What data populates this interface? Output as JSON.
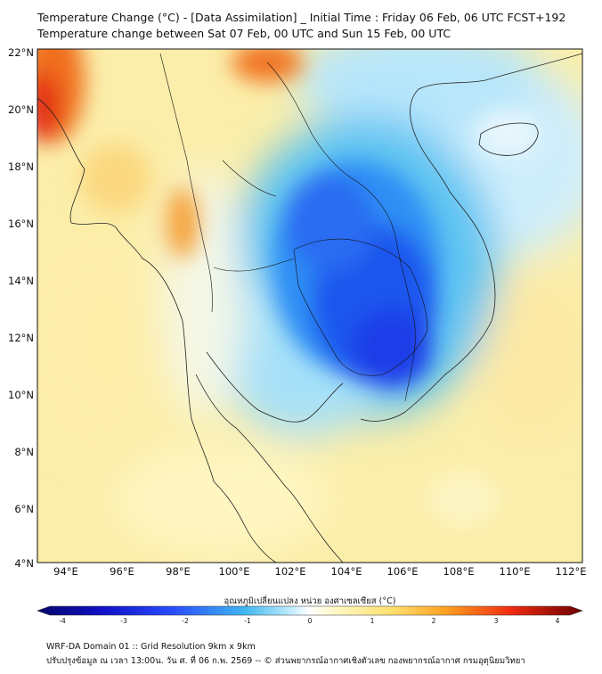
{
  "title": "Temperature Change (°C) - [Data Assimilation] _ Initial Time : Friday 06 Feb, 06 UTC FCST+192",
  "subtitle": "Temperature change between Sat 07 Feb, 00 UTC and Sun 15 Feb, 00 UTC",
  "lat_labels": [
    "22°N",
    "20°N",
    "18°N",
    "16°N",
    "14°N",
    "12°N",
    "10°N",
    "8°N",
    "6°N",
    "4°N"
  ],
  "lon_labels": [
    "94°E",
    "96°E",
    "98°E",
    "100°E",
    "102°E",
    "104°E",
    "106°E",
    "108°E",
    "110°E",
    "112°E"
  ],
  "colorbar": {
    "label": "อุณหภูมิเปลี่ยนแปลง หน่วย องศาเซลเซียส (°C)",
    "ticks": [
      "-4",
      "-3",
      "-2",
      "-1",
      "0",
      "1",
      "2",
      "3",
      "4"
    ]
  },
  "footer": {
    "line1": "WRF-DA Domain 01 :: Grid Resolution 9km x 9km",
    "line2": "ปรับปรุงข้อมูล ณ เวลา 13:00น. วัน ศ. ที่ 06 ก.พ. 2569 -- © ส่วนพยากรณ์อากาศเชิงตัวเลข กองพยากรณ์อากาศ กรมอุตุนิยมวิทยา"
  }
}
